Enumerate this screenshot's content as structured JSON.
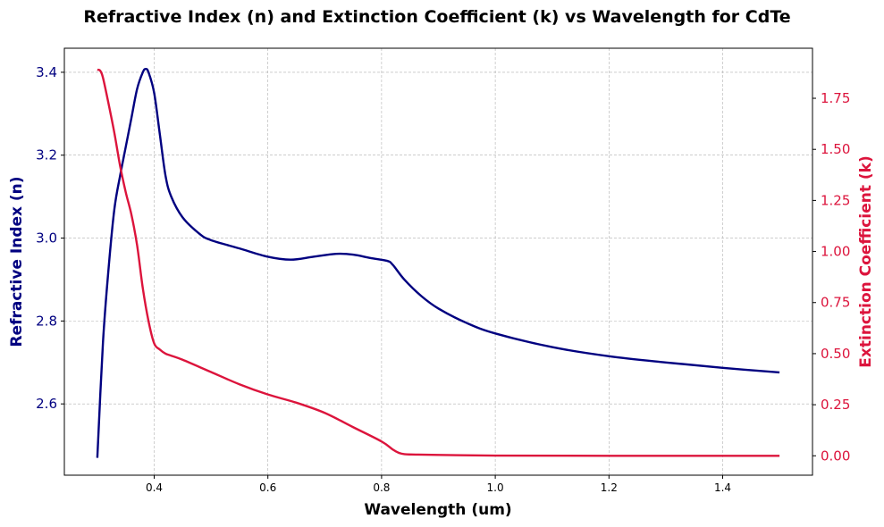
{
  "chart_data": {
    "type": "line",
    "title": "Refractive Index (n) and Extinction Coefficient (k) vs Wavelength for CdTe",
    "xlabel": "Wavelength (um)",
    "ylabel_left": "Refractive Index (n)",
    "ylabel_right": "Extinction Coefficient (k)",
    "xlim": [
      0.242,
      1.558
    ],
    "ylim_left": [
      2.428,
      3.458
    ],
    "ylim_right": [
      -0.095,
      1.995
    ],
    "xticks": [
      "0.4",
      "0.6",
      "0.8",
      "1.0",
      "1.2",
      "1.4"
    ],
    "yticks_left": [
      "2.6",
      "2.8",
      "3.0",
      "3.2",
      "3.4"
    ],
    "yticks_right": [
      "0.00",
      "0.25",
      "0.50",
      "0.75",
      "1.00",
      "1.25",
      "1.50",
      "1.75"
    ],
    "grid": true,
    "series": [
      {
        "name": "",
        "axis": "left",
        "color": "#000080",
        "x": [
          0.3,
          0.31,
          0.32,
          0.33,
          0.34,
          0.35,
          0.36,
          0.37,
          0.38,
          0.385,
          0.39,
          0.4,
          0.41,
          0.42,
          0.43,
          0.45,
          0.48,
          0.5,
          0.55,
          0.6,
          0.64,
          0.68,
          0.72,
          0.75,
          0.78,
          0.81,
          0.82,
          0.84,
          0.87,
          0.9,
          0.95,
          1.0,
          1.1,
          1.2,
          1.3,
          1.4,
          1.5
        ],
        "values": [
          2.47,
          2.75,
          2.93,
          3.07,
          3.15,
          3.22,
          3.29,
          3.36,
          3.4,
          3.408,
          3.4,
          3.35,
          3.25,
          3.15,
          3.1,
          3.05,
          3.01,
          2.995,
          2.975,
          2.955,
          2.948,
          2.955,
          2.962,
          2.96,
          2.952,
          2.945,
          2.935,
          2.9,
          2.86,
          2.83,
          2.795,
          2.77,
          2.737,
          2.715,
          2.7,
          2.687,
          2.676
        ]
      },
      {
        "name": "",
        "axis": "right",
        "color": "#dc143c",
        "x": [
          0.3,
          0.305,
          0.31,
          0.32,
          0.33,
          0.34,
          0.35,
          0.36,
          0.37,
          0.38,
          0.39,
          0.4,
          0.41,
          0.42,
          0.43,
          0.45,
          0.5,
          0.55,
          0.6,
          0.65,
          0.7,
          0.75,
          0.8,
          0.82,
          0.83,
          0.84,
          0.86,
          0.9,
          1.0,
          1.2,
          1.5
        ],
        "values": [
          1.89,
          1.885,
          1.85,
          1.72,
          1.58,
          1.42,
          1.29,
          1.18,
          1.03,
          0.82,
          0.66,
          0.55,
          0.52,
          0.5,
          0.49,
          0.47,
          0.41,
          0.35,
          0.3,
          0.26,
          0.21,
          0.14,
          0.07,
          0.03,
          0.015,
          0.008,
          0.006,
          0.004,
          0.001,
          0.0,
          0.0
        ]
      }
    ]
  }
}
